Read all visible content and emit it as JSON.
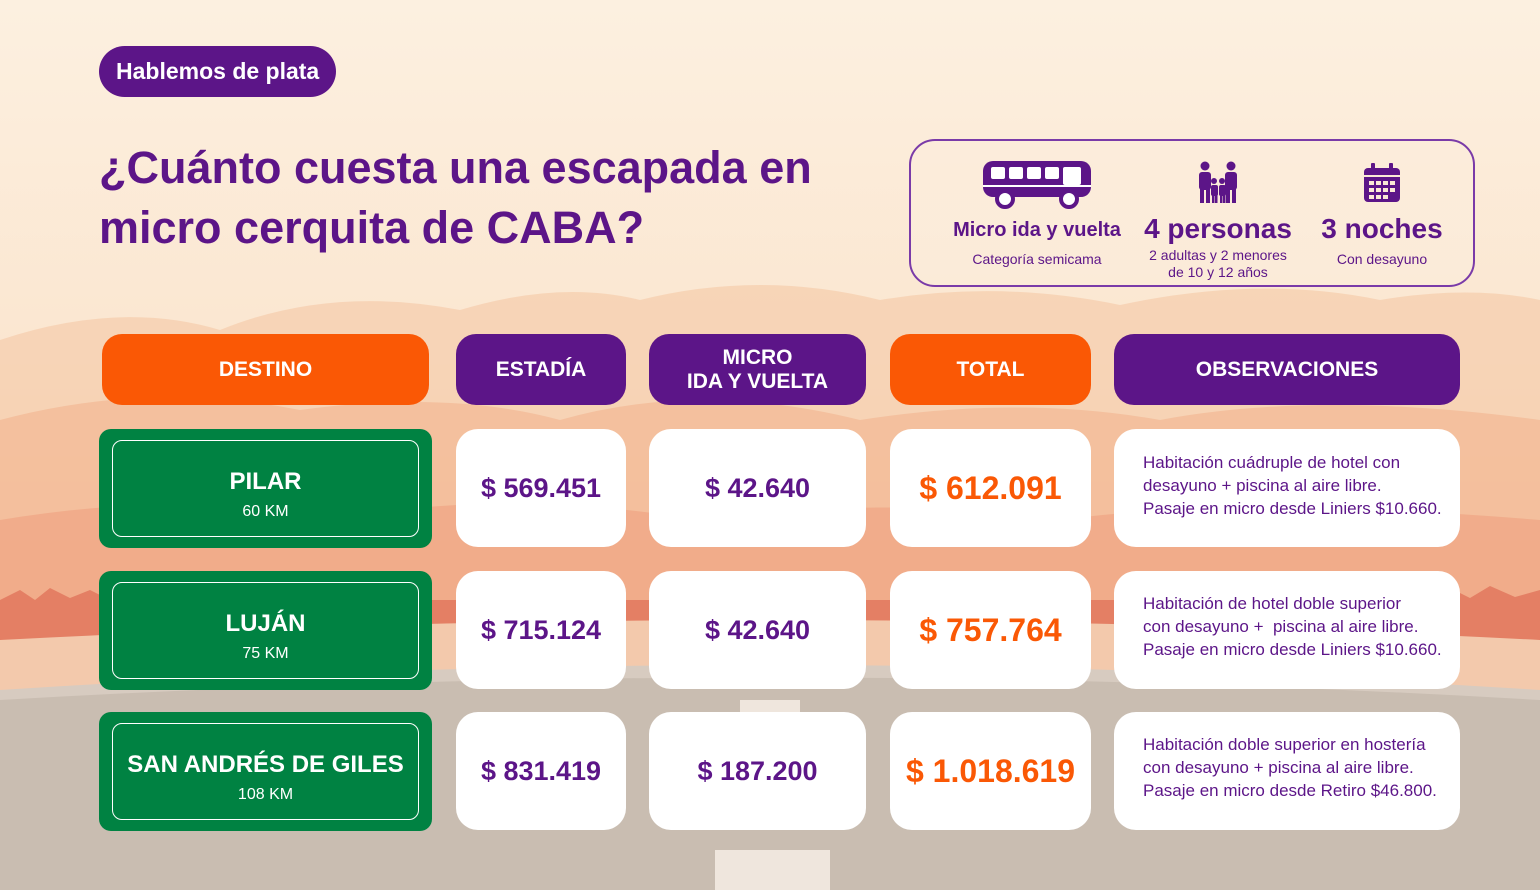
{
  "tag": "Hablemos de plata",
  "title": {
    "line1": "¿Cuánto cuesta una escapada en",
    "line2": "micro cerquita de CABA?"
  },
  "info": [
    {
      "icon": "bus-icon",
      "main": "Micro ida y vuelta",
      "sub": [
        "Categoría semicama"
      ]
    },
    {
      "icon": "family-icon",
      "main": "4 personas",
      "sub": [
        "2 adultas y 2 menores",
        "de 10 y 12 años"
      ]
    },
    {
      "icon": "calendar-icon",
      "main": "3 noches",
      "sub": [
        "Con desayuno"
      ]
    }
  ],
  "headers": {
    "destino": "DESTINO",
    "estadia": "ESTADÍA",
    "micro_line1": "MICRO",
    "micro_line2": "IDA Y VUELTA",
    "total": "TOTAL",
    "observaciones": "OBSERVACIONES"
  },
  "rows": [
    {
      "destino": "PILAR",
      "km": "60 KM",
      "estadia": "$ 569.451",
      "micro": "$ 42.640",
      "total": "$ 612.091",
      "obs": [
        "Habitación cuádruple de hotel con",
        "desayuno + piscina al aire libre.",
        "Pasaje en micro desde Liniers $10.660."
      ]
    },
    {
      "destino": "LUJÁN",
      "km": "75 KM",
      "estadia": "$ 715.124",
      "micro": "$ 42.640",
      "total": "$ 757.764",
      "obs": [
        "Habitación de hotel doble superior",
        "con desayuno +  piscina al aire libre.",
        "Pasaje en micro desde Liniers $10.660."
      ]
    },
    {
      "destino": "SAN ANDRÉS DE GILES",
      "km": "108 KM",
      "estadia": "$ 831.419",
      "micro": "$ 187.200",
      "total": "$ 1.018.619",
      "obs": [
        "Habitación doble superior en hostería",
        "con desayuno + piscina al aire libre.",
        "Pasaje en micro desde Retiro $46.800."
      ]
    }
  ],
  "colors": {
    "purple": "#5c1588",
    "orange": "#fa5805",
    "green": "#008242",
    "background": "#fbe9d6"
  }
}
